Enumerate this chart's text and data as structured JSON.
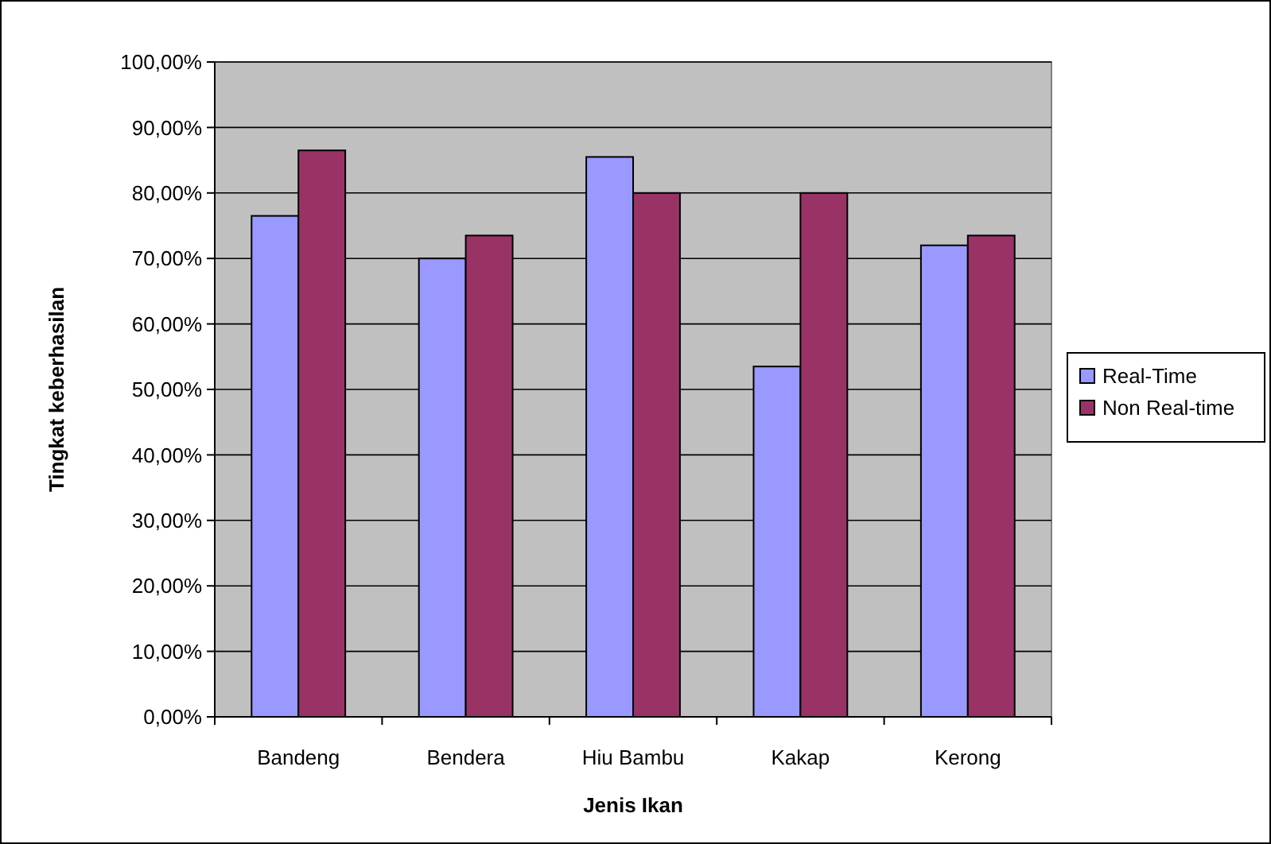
{
  "chart_data": {
    "type": "bar",
    "xlabel": "Jenis Ikan",
    "ylabel": "Tingkat keberhasilan",
    "categories": [
      "Bandeng",
      "Bendera",
      "Hiu Bambu",
      "Kakap",
      "Kerong"
    ],
    "series": [
      {
        "name": "Real-Time",
        "color": "#9999ff",
        "values": [
          76.5,
          70,
          85.5,
          53.5,
          72
        ]
      },
      {
        "name": "Non Real-time",
        "color": "#993366",
        "values": [
          86.5,
          73.5,
          80,
          80,
          73.5
        ]
      }
    ],
    "ylim": [
      0,
      100
    ],
    "yticks": [
      {
        "value": 0,
        "label": "0,00%"
      },
      {
        "value": 10,
        "label": "10,00%"
      },
      {
        "value": 20,
        "label": "20,00%"
      },
      {
        "value": 30,
        "label": "30,00%"
      },
      {
        "value": 40,
        "label": "40,00%"
      },
      {
        "value": 50,
        "label": "50,00%"
      },
      {
        "value": 60,
        "label": "60,00%"
      },
      {
        "value": 70,
        "label": "70,00%"
      },
      {
        "value": 80,
        "label": "80,00%"
      },
      {
        "value": 90,
        "label": "90,00%"
      },
      {
        "value": 100,
        "label": "100,00%"
      }
    ],
    "grid": "y",
    "legend": "right"
  }
}
